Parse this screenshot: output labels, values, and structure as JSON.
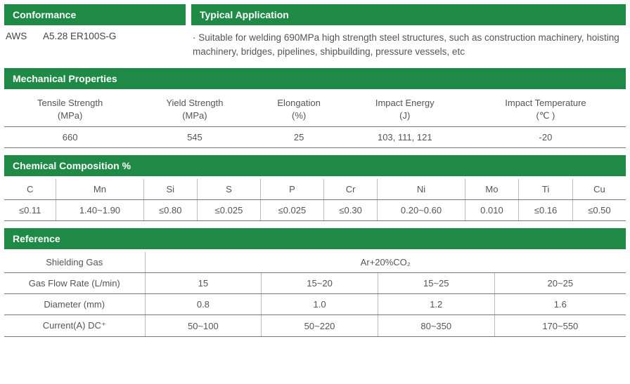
{
  "conformance": {
    "header": "Conformance",
    "standard_label": "AWS",
    "standard_value": "A5.28 ER100S-G"
  },
  "application": {
    "header": "Typical Application",
    "text": "· Suitable for welding 690MPa high strength steel structures, such as construction machinery, hoisting machinery, bridges, pipelines, shipbuilding, pressure  vessels, etc"
  },
  "mechanical": {
    "header": "Mechanical Properties",
    "columns": [
      {
        "l1": "Tensile Strength",
        "l2": "(MPa)"
      },
      {
        "l1": "Yield Strength",
        "l2": "(MPa)"
      },
      {
        "l1": "Elongation",
        "l2": "(%)"
      },
      {
        "l1": "Impact Energy",
        "l2": "(J)"
      },
      {
        "l1": "Impact Temperature",
        "l2": "(℃ )"
      }
    ],
    "values": [
      "660",
      "545",
      "25",
      "103, 111, 121",
      "-20"
    ]
  },
  "chemical": {
    "header": "Chemical Composition %",
    "elements": [
      "C",
      "Mn",
      "Si",
      "S",
      "P",
      "Cr",
      "Ni",
      "Mo",
      "Ti",
      "Cu"
    ],
    "values": [
      "≤0.11",
      "1.40~1.90",
      "≤0.80",
      "≤0.025",
      "≤0.025",
      "≤0.30",
      "0.20~0.60",
      "0.010",
      "≤0.16",
      "≤0.50"
    ]
  },
  "reference": {
    "header": "Reference",
    "rows": [
      {
        "label": "Shielding Gas",
        "cells": [
          "Ar+20%CO₂"
        ],
        "span": 4
      },
      {
        "label": "Gas Flow Rate (L/min)",
        "cells": [
          "15",
          "15~20",
          "15~25",
          "20~25"
        ]
      },
      {
        "label": "Diameter (mm)",
        "cells": [
          "0.8",
          "1.0",
          "1.2",
          "1.6"
        ]
      },
      {
        "label": "Current(A) DC⁺",
        "cells": [
          "50~100",
          "50~220",
          "80~350",
          "170~550"
        ]
      }
    ]
  },
  "colors": {
    "header_bg": "#1f8a46",
    "header_fg": "#ffffff",
    "text": "#555555",
    "rule": "#777777",
    "sep": "#bbbbbb",
    "bg": "#ffffff"
  }
}
